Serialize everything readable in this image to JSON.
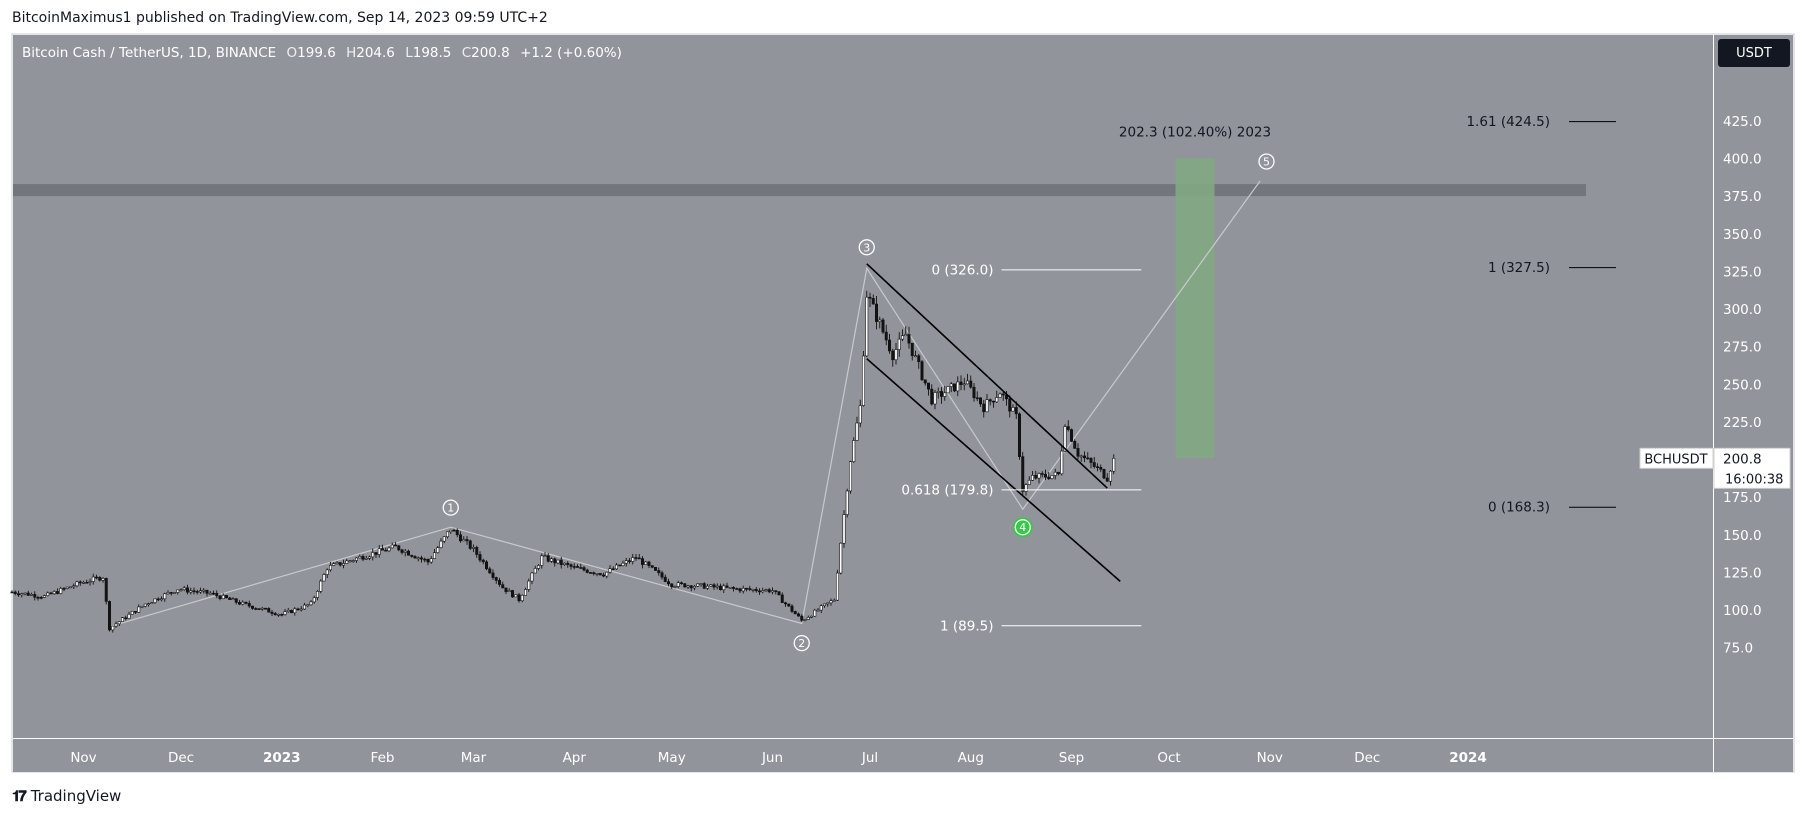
{
  "header": {
    "publish_line": "BitcoinMaximus1 published on TradingView.com, Sep 14, 2023 09:59 UTC+2"
  },
  "legend": {
    "symbol": "Bitcoin Cash / TetherUS, 1D, BINANCE",
    "open_label": "O",
    "open": "199.6",
    "high_label": "H",
    "high": "204.6",
    "low_label": "L",
    "low": "198.5",
    "close_label": "C",
    "close": "200.8",
    "change": "+1.2 (+0.60%)"
  },
  "currency_button": "USDT",
  "footer": {
    "logo_text": "TradingView"
  },
  "colors": {
    "background": "#92949c",
    "candle": "#131313",
    "resistance_zone": "#74767e",
    "target_zone": "#82a883",
    "wave_line": "#c8c9cc",
    "axis_text": "#ffffff"
  },
  "chart_data": {
    "type": "candlestick",
    "symbol": "BCHUSDT",
    "y_axis": {
      "ticks": [
        425,
        400,
        375,
        350,
        325,
        300,
        275,
        250,
        225,
        200,
        175,
        150,
        125,
        100,
        75
      ],
      "tick_labels": [
        "425.0",
        "400.0",
        "375.0",
        "350.0",
        "325.0",
        "300.0",
        "275.0",
        "250.0",
        "225.0",
        "200.0",
        "175.0",
        "150.0",
        "125.0",
        "100.0",
        "75.0"
      ]
    },
    "x_axis": {
      "range": [
        "2022-10-10",
        "2024-01-22"
      ],
      "tick_labels": [
        {
          "label": "Nov",
          "date": "2022-11-01"
        },
        {
          "label": "Dec",
          "date": "2022-12-01"
        },
        {
          "label": "2023",
          "date": "2023-01-01",
          "bold": true
        },
        {
          "label": "Feb",
          "date": "2023-02-01"
        },
        {
          "label": "Mar",
          "date": "2023-03-01"
        },
        {
          "label": "Apr",
          "date": "2023-04-01"
        },
        {
          "label": "May",
          "date": "2023-05-01"
        },
        {
          "label": "Jun",
          "date": "2023-06-01"
        },
        {
          "label": "Jul",
          "date": "2023-07-01"
        },
        {
          "label": "Aug",
          "date": "2023-08-01"
        },
        {
          "label": "Sep",
          "date": "2023-09-01"
        },
        {
          "label": "Oct",
          "date": "2023-10-01"
        },
        {
          "label": "Nov",
          "date": "2023-11-01"
        },
        {
          "label": "Dec",
          "date": "2023-12-01"
        },
        {
          "label": "2024",
          "date": "2024-01-01",
          "bold": true
        }
      ]
    },
    "price_path": [
      [
        "2022-10-10",
        112
      ],
      [
        "2022-10-20",
        109
      ],
      [
        "2022-10-31",
        118
      ],
      [
        "2022-11-07",
        122
      ],
      [
        "2022-11-09",
        88
      ],
      [
        "2022-11-20",
        104
      ],
      [
        "2022-11-30",
        114
      ],
      [
        "2022-12-10",
        111
      ],
      [
        "2022-12-20",
        104
      ],
      [
        "2023-01-01",
        97
      ],
      [
        "2023-01-10",
        104
      ],
      [
        "2023-01-15",
        128
      ],
      [
        "2023-01-25",
        135
      ],
      [
        "2023-02-05",
        142
      ],
      [
        "2023-02-15",
        132
      ],
      [
        "2023-02-22",
        154
      ],
      [
        "2023-03-01",
        140
      ],
      [
        "2023-03-10",
        115
      ],
      [
        "2023-03-15",
        107
      ],
      [
        "2023-03-22",
        135
      ],
      [
        "2023-04-01",
        128
      ],
      [
        "2023-04-10",
        124
      ],
      [
        "2023-04-20",
        135
      ],
      [
        "2023-05-01",
        117
      ],
      [
        "2023-05-10",
        116
      ],
      [
        "2023-05-20",
        114
      ],
      [
        "2023-06-01",
        113
      ],
      [
        "2023-06-10",
        93
      ],
      [
        "2023-06-15",
        100
      ],
      [
        "2023-06-20",
        107
      ],
      [
        "2023-06-22",
        145
      ],
      [
        "2023-06-25",
        200
      ],
      [
        "2023-06-28",
        235
      ],
      [
        "2023-06-30",
        310
      ],
      [
        "2023-07-03",
        295
      ],
      [
        "2023-07-08",
        270
      ],
      [
        "2023-07-12",
        283
      ],
      [
        "2023-07-20",
        240
      ],
      [
        "2023-07-30",
        252
      ],
      [
        "2023-08-05",
        235
      ],
      [
        "2023-08-10",
        245
      ],
      [
        "2023-08-15",
        228
      ],
      [
        "2023-08-17",
        180
      ],
      [
        "2023-08-20",
        188
      ],
      [
        "2023-08-28",
        190
      ],
      [
        "2023-08-30",
        225
      ],
      [
        "2023-09-03",
        204
      ],
      [
        "2023-09-10",
        192
      ],
      [
        "2023-09-12",
        188
      ],
      [
        "2023-09-14",
        200.8
      ]
    ],
    "wave_count_path": [
      [
        "2022-11-09",
        89
      ],
      [
        "2023-02-22",
        155
      ],
      [
        "2023-06-10",
        91
      ],
      [
        "2023-06-30",
        327
      ],
      [
        "2023-08-17",
        167
      ],
      [
        "2023-10-29",
        385
      ]
    ],
    "wave_labels": [
      {
        "label": "1",
        "date": "2023-02-22",
        "price": 168
      },
      {
        "label": "2",
        "date": "2023-06-10",
        "price": 78
      },
      {
        "label": "3",
        "date": "2023-06-30",
        "price": 341
      },
      {
        "label": "4",
        "date": "2023-08-17",
        "price": 155,
        "highlight": true
      },
      {
        "label": "5",
        "date": "2023-10-31",
        "price": 398
      }
    ],
    "channel": {
      "upper": [
        [
          "2023-06-30",
          330
        ],
        [
          "2023-09-12",
          181
        ]
      ],
      "lower": [
        [
          "2023-06-30",
          267
        ],
        [
          "2023-09-16",
          119
        ]
      ]
    },
    "retracement_fib": [
      {
        "label": "0 (326.0)",
        "price": 326.0
      },
      {
        "label": "0.618 (179.8)",
        "price": 179.8
      },
      {
        "label": "1 (89.5)",
        "price": 89.5
      }
    ],
    "extension_fib": [
      {
        "label": "1.61 (424.5)",
        "price": 424.5
      },
      {
        "label": "1 (327.5)",
        "price": 327.5
      },
      {
        "label": "0 (168.3)",
        "price": 168.3
      }
    ],
    "resistance_zone": {
      "from": 375,
      "to": 383
    },
    "target_zone": {
      "from": 201,
      "to": 400,
      "label": "202.3 (102.40%) 2023"
    },
    "last_price": {
      "symbol": "BCHUSDT",
      "price": "200.8",
      "countdown": "16:00:38"
    }
  }
}
